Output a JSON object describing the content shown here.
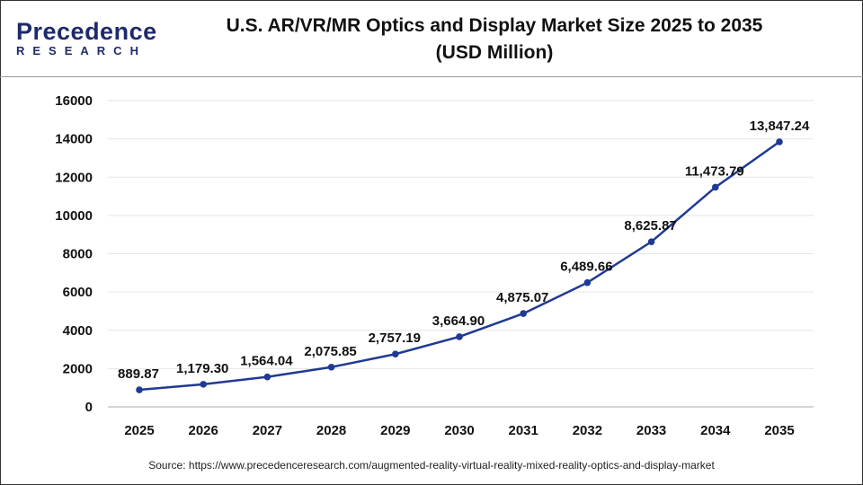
{
  "logo": {
    "line1": "Precedence",
    "line2": "RESEARCH"
  },
  "title": "U.S. AR/VR/MR Optics and Display Market Size 2025 to 2035",
  "subtitle": "(USD Million)",
  "source": "Source: https://www.precedenceresearch.com/augmented-reality-virtual-reality-mixed-reality-optics-and-display-market",
  "chart_data": {
    "type": "line",
    "title": "U.S. AR/VR/MR Optics and Display Market Size 2025 to 2035 (USD Million)",
    "categories": [
      "2025",
      "2026",
      "2027",
      "2028",
      "2029",
      "2030",
      "2031",
      "2032",
      "2033",
      "2034",
      "2035"
    ],
    "values": [
      889.87,
      1179.3,
      1564.04,
      2075.85,
      2757.19,
      3664.9,
      4875.07,
      6489.66,
      8625.87,
      11473.79,
      13847.24
    ],
    "labels": [
      "889.87",
      "1,179.30",
      "1,564.04",
      "2,075.85",
      "2,757.19",
      "3,664.90",
      "4,875.07",
      "6,489.66",
      "8,625.87",
      "11,473.79",
      "13,847.24"
    ],
    "ylim": [
      0,
      16000
    ],
    "yticks": [
      "0",
      "2000",
      "4000",
      "6000",
      "8000",
      "10000",
      "12000",
      "14000",
      "16000"
    ],
    "grid": true,
    "line_color": "#1f3a93"
  }
}
